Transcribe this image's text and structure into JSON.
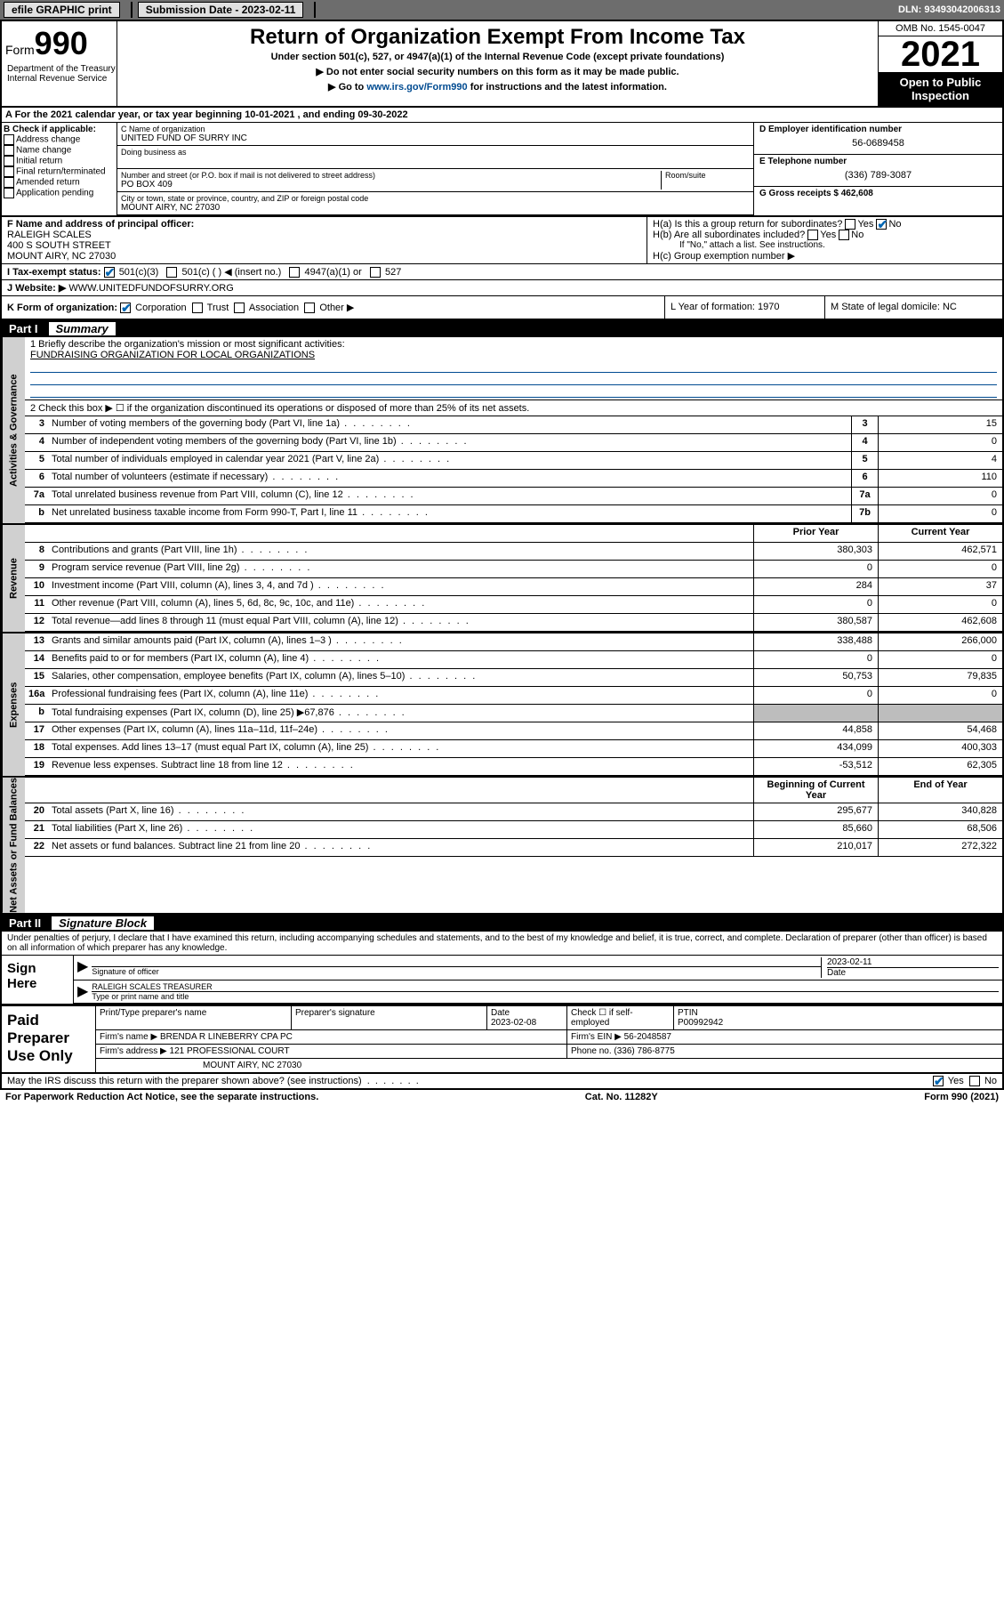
{
  "topbar": {
    "efile_label": "efile GRAPHIC print",
    "submission_label": "Submission Date - 2023-02-11",
    "dln_label": "DLN: 93493042006313"
  },
  "header": {
    "form_prefix": "Form",
    "form_num": "990",
    "title": "Return of Organization Exempt From Income Tax",
    "subtitle": "Under section 501(c), 527, or 4947(a)(1) of the Internal Revenue Code (except private foundations)",
    "arrow1": "▶ Do not enter social security numbers on this form as it may be made public.",
    "arrow2_pre": "▶ Go to ",
    "arrow2_link": "www.irs.gov/Form990",
    "arrow2_post": " for instructions and the latest information.",
    "omb": "OMB No. 1545-0047",
    "year": "2021",
    "open": "Open to Public Inspection",
    "dept": "Department of the Treasury Internal Revenue Service"
  },
  "section_a": "A For the 2021 calendar year, or tax year beginning 10-01-2021  , and ending 09-30-2022",
  "col_b": {
    "title": "B Check if applicable:",
    "items": [
      "Address change",
      "Name change",
      "Initial return",
      "Final return/terminated",
      "Amended return",
      "Application pending"
    ]
  },
  "col_c": {
    "name_lbl": "C Name of organization",
    "name": "UNITED FUND OF SURRY INC",
    "dba_lbl": "Doing business as",
    "addr_lbl": "Number and street (or P.O. box if mail is not delivered to street address)",
    "room_lbl": "Room/suite",
    "addr": "PO BOX 409",
    "city_lbl": "City or town, state or province, country, and ZIP or foreign postal code",
    "city": "MOUNT AIRY, NC  27030"
  },
  "col_de": {
    "d_lbl": "D Employer identification number",
    "d_val": "56-0689458",
    "e_lbl": "E Telephone number",
    "e_val": "(336) 789-3087",
    "g_lbl": "G Gross receipts $ 462,608"
  },
  "row_f": {
    "f_lbl": "F Name and address of principal officer:",
    "f_name": "RALEIGH SCALES",
    "f_addr1": "400 S SOUTH STREET",
    "f_addr2": "MOUNT AIRY, NC  27030",
    "ha": "H(a)  Is this a group return for subordinates?",
    "hb": "H(b)  Are all subordinates included?",
    "hb_note": "If \"No,\" attach a list. See instructions.",
    "hc": "H(c)  Group exemption number ▶",
    "yes": "Yes",
    "no": "No"
  },
  "row_i": {
    "lbl": "I    Tax-exempt status:",
    "opts": [
      "501(c)(3)",
      "501(c) (  ) ◀ (insert no.)",
      "4947(a)(1) or",
      "527"
    ]
  },
  "row_j": {
    "lbl": "J   Website: ▶",
    "val": " WWW.UNITEDFUNDOFSURRY.ORG"
  },
  "row_k": {
    "k_lbl": "K Form of organization:",
    "k_opts": [
      "Corporation",
      "Trust",
      "Association",
      "Other ▶"
    ],
    "l_lbl": "L Year of formation: 1970",
    "m_lbl": "M State of legal domicile: NC"
  },
  "part1": {
    "num": "Part I",
    "title": "Summary"
  },
  "mission": {
    "q1": "1  Briefly describe the organization's mission or most significant activities:",
    "text": "FUNDRAISING ORGANIZATION FOR LOCAL ORGANIZATIONS",
    "q2": "2   Check this box ▶ ☐  if the organization discontinued its operations or disposed of more than 25% of its net assets."
  },
  "tabs": {
    "gov": "Activities & Governance",
    "rev": "Revenue",
    "exp": "Expenses",
    "net": "Net Assets or Fund Balances"
  },
  "gov_rows": [
    {
      "n": "3",
      "desc": "Number of voting members of the governing body (Part VI, line 1a)",
      "box": "3",
      "val": "15"
    },
    {
      "n": "4",
      "desc": "Number of independent voting members of the governing body (Part VI, line 1b)",
      "box": "4",
      "val": "0"
    },
    {
      "n": "5",
      "desc": "Total number of individuals employed in calendar year 2021 (Part V, line 2a)",
      "box": "5",
      "val": "4"
    },
    {
      "n": "6",
      "desc": "Total number of volunteers (estimate if necessary)",
      "box": "6",
      "val": "110"
    },
    {
      "n": "7a",
      "desc": "Total unrelated business revenue from Part VIII, column (C), line 12",
      "box": "7a",
      "val": "0"
    },
    {
      "n": "b",
      "desc": "Net unrelated business taxable income from Form 990-T, Part I, line 11",
      "box": "7b",
      "val": "0"
    }
  ],
  "col_hdrs": {
    "prior": "Prior Year",
    "current": "Current Year"
  },
  "rev_rows": [
    {
      "n": "8",
      "desc": "Contributions and grants (Part VIII, line 1h)",
      "prior": "380,303",
      "cur": "462,571"
    },
    {
      "n": "9",
      "desc": "Program service revenue (Part VIII, line 2g)",
      "prior": "0",
      "cur": "0"
    },
    {
      "n": "10",
      "desc": "Investment income (Part VIII, column (A), lines 3, 4, and 7d )",
      "prior": "284",
      "cur": "37"
    },
    {
      "n": "11",
      "desc": "Other revenue (Part VIII, column (A), lines 5, 6d, 8c, 9c, 10c, and 11e)",
      "prior": "0",
      "cur": "0"
    },
    {
      "n": "12",
      "desc": "Total revenue—add lines 8 through 11 (must equal Part VIII, column (A), line 12)",
      "prior": "380,587",
      "cur": "462,608"
    }
  ],
  "exp_rows": [
    {
      "n": "13",
      "desc": "Grants and similar amounts paid (Part IX, column (A), lines 1–3 )",
      "prior": "338,488",
      "cur": "266,000"
    },
    {
      "n": "14",
      "desc": "Benefits paid to or for members (Part IX, column (A), line 4)",
      "prior": "0",
      "cur": "0"
    },
    {
      "n": "15",
      "desc": "Salaries, other compensation, employee benefits (Part IX, column (A), lines 5–10)",
      "prior": "50,753",
      "cur": "79,835"
    },
    {
      "n": "16a",
      "desc": "Professional fundraising fees (Part IX, column (A), line 11e)",
      "prior": "0",
      "cur": "0"
    },
    {
      "n": "b",
      "desc": "Total fundraising expenses (Part IX, column (D), line 25) ▶67,876",
      "prior": "",
      "cur": "",
      "grey": true
    },
    {
      "n": "17",
      "desc": "Other expenses (Part IX, column (A), lines 11a–11d, 11f–24e)",
      "prior": "44,858",
      "cur": "54,468"
    },
    {
      "n": "18",
      "desc": "Total expenses. Add lines 13–17 (must equal Part IX, column (A), line 25)",
      "prior": "434,099",
      "cur": "400,303"
    },
    {
      "n": "19",
      "desc": "Revenue less expenses. Subtract line 18 from line 12",
      "prior": "-53,512",
      "cur": "62,305"
    }
  ],
  "net_hdrs": {
    "beg": "Beginning of Current Year",
    "end": "End of Year"
  },
  "net_rows": [
    {
      "n": "20",
      "desc": "Total assets (Part X, line 16)",
      "prior": "295,677",
      "cur": "340,828"
    },
    {
      "n": "21",
      "desc": "Total liabilities (Part X, line 26)",
      "prior": "85,660",
      "cur": "68,506"
    },
    {
      "n": "22",
      "desc": "Net assets or fund balances. Subtract line 21 from line 20",
      "prior": "210,017",
      "cur": "272,322"
    }
  ],
  "part2": {
    "num": "Part II",
    "title": "Signature Block"
  },
  "sig": {
    "decl": "Under penalties of perjury, I declare that I have examined this return, including accompanying schedules and statements, and to the best of my knowledge and belief, it is true, correct, and complete. Declaration of preparer (other than officer) is based on all information of which preparer has any knowledge.",
    "sign_here": "Sign Here",
    "sig_officer": "Signature of officer",
    "date_lbl": "Date",
    "date_val": "2023-02-11",
    "name_title": "RALEIGH SCALES  TREASURER",
    "type_lbl": "Type or print name and title"
  },
  "prep": {
    "lbl": "Paid Preparer Use Only",
    "print_lbl": "Print/Type preparer's name",
    "sig_lbl": "Preparer's signature",
    "date_lbl": "Date",
    "date_val": "2023-02-08",
    "check_lbl": "Check ☐ if self-employed",
    "ptin_lbl": "PTIN",
    "ptin_val": "P00992942",
    "firm_name_lbl": "Firm's name    ▶",
    "firm_name": "BRENDA R LINEBERRY CPA PC",
    "firm_ein_lbl": "Firm's EIN ▶",
    "firm_ein": "56-2048587",
    "firm_addr_lbl": "Firm's address ▶",
    "firm_addr1": "121 PROFESSIONAL COURT",
    "firm_addr2": "MOUNT AIRY, NC  27030",
    "phone_lbl": "Phone no.",
    "phone_val": "(336) 786-8775"
  },
  "discuss": {
    "q": "May the IRS discuss this return with the preparer shown above? (see instructions)",
    "yes": "Yes",
    "no": "No"
  },
  "foot": {
    "left": "For Paperwork Reduction Act Notice, see the separate instructions.",
    "mid": "Cat. No. 11282Y",
    "right": "Form 990 (2021)"
  }
}
